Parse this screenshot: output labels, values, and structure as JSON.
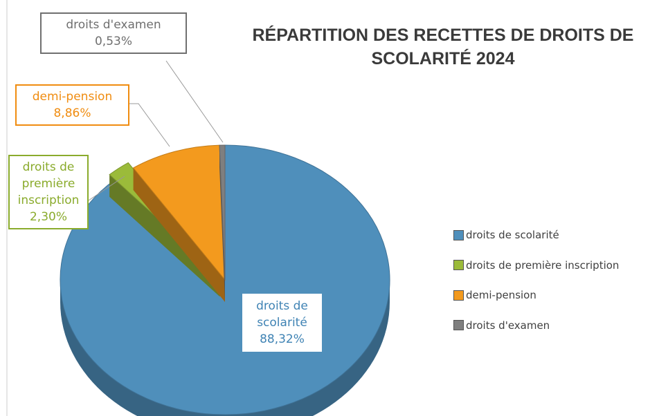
{
  "chart_data": {
    "type": "pie",
    "title": "RÉPARTITION DES RECETTES DE DROITS DE SCOLARITÉ 2024",
    "categories": [
      "droits de scolarité",
      "droits de première inscription",
      "demi-pension",
      "droits d'examen"
    ],
    "values": [
      88.32,
      2.3,
      8.86,
      0.53
    ],
    "value_labels": [
      "88,32%",
      "2,30%",
      "8,86%",
      "0,53%"
    ],
    "colors": [
      "#4f8fbb",
      "#9bbb3a",
      "#f39a1e",
      "#7f7f7f"
    ],
    "legend": "right"
  }
}
